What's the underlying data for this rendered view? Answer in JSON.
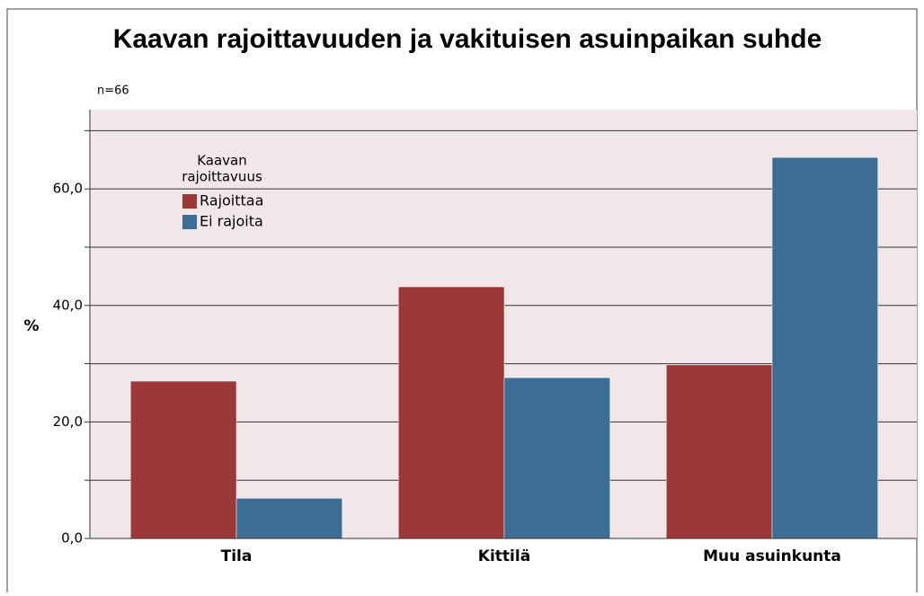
{
  "chart_data": {
    "type": "bar",
    "title": "Kaavan rajoittavuuden ja vakituisen asuinpaikan suhde",
    "annotation": "n=66",
    "y_label": "%",
    "legend_title": [
      "Kaavan",
      "rajoittavuus"
    ],
    "categories": [
      "Tila",
      "Kittilä",
      "Muu asuinkunta"
    ],
    "series": [
      {
        "name": "Rajoittaa",
        "color": "#9c3838",
        "values": [
          27.0,
          43.2,
          29.8
        ]
      },
      {
        "name": "Ei rajoita",
        "color": "#3c6e95",
        "values": [
          6.9,
          27.6,
          65.4
        ]
      }
    ],
    "ylim": [
      0,
      73.6
    ],
    "yticks": [
      {
        "value": 0,
        "label": "0,0"
      },
      {
        "value": 20,
        "label": "20,0"
      },
      {
        "value": 40,
        "label": "40,0"
      },
      {
        "value": 60,
        "label": "60,0"
      }
    ],
    "minor_yticks": [
      10,
      30,
      50,
      70
    ],
    "grid": true,
    "background": "#f1e7e8"
  }
}
